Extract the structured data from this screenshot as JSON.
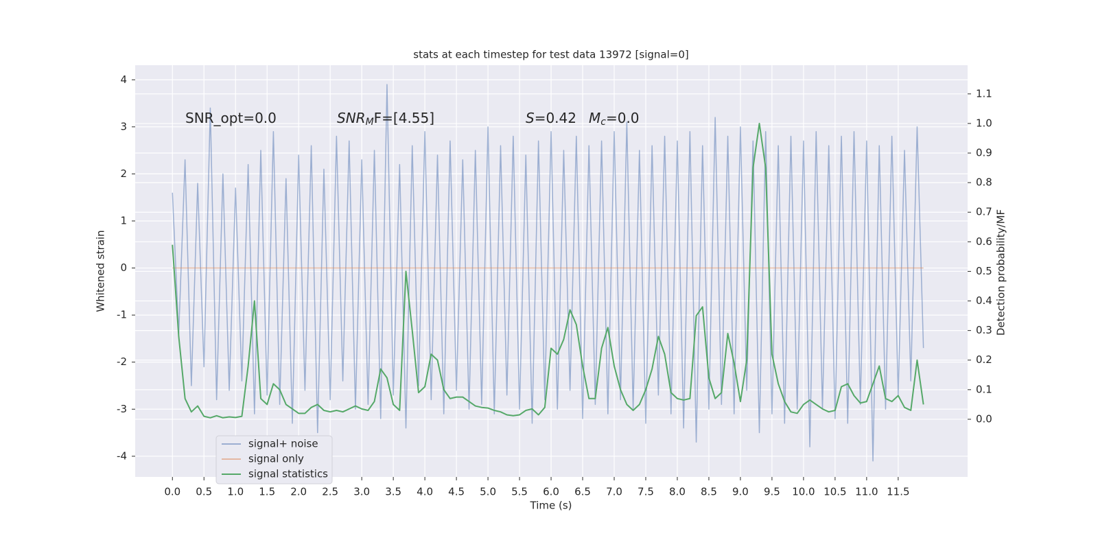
{
  "chart_data": {
    "type": "line",
    "title": "stats at each timestep for test data 13972 [signal=0]",
    "xlabel": "Time (s)",
    "ylabel": "Whitened strain",
    "y2label": "Detection probability/MF",
    "x": [
      0.0,
      0.1,
      0.2,
      0.3,
      0.4,
      0.5,
      0.6,
      0.7,
      0.8,
      0.9,
      1.0,
      1.1,
      1.2,
      1.3,
      1.4,
      1.5,
      1.6,
      1.7,
      1.8,
      1.9,
      2.0,
      2.1,
      2.2,
      2.3,
      2.4,
      2.5,
      2.6,
      2.7,
      2.8,
      2.9,
      3.0,
      3.1,
      3.2,
      3.3,
      3.4,
      3.5,
      3.6,
      3.7,
      3.8,
      3.9,
      4.0,
      4.1,
      4.2,
      4.3,
      4.4,
      4.5,
      4.6,
      4.7,
      4.8,
      4.9,
      5.0,
      5.1,
      5.2,
      5.3,
      5.4,
      5.5,
      5.6,
      5.7,
      5.8,
      5.9,
      6.0,
      6.1,
      6.2,
      6.3,
      6.4,
      6.5,
      6.6,
      6.7,
      6.8,
      6.9,
      7.0,
      7.1,
      7.2,
      7.3,
      7.4,
      7.5,
      7.6,
      7.7,
      7.8,
      7.9,
      8.0,
      8.1,
      8.2,
      8.3,
      8.4,
      8.5,
      8.6,
      8.7,
      8.8,
      8.9,
      9.0,
      9.1,
      9.2,
      9.3,
      9.4,
      9.5,
      9.6,
      9.7,
      9.8,
      9.9,
      10.0,
      10.1,
      10.2,
      10.3,
      10.4,
      10.5,
      10.6,
      10.7,
      10.8,
      10.9,
      11.0,
      11.1,
      11.2,
      11.3,
      11.4,
      11.5,
      11.6,
      11.7,
      11.8,
      11.9
    ],
    "series": [
      {
        "name": "signal+ noise",
        "color": "#4c72b0",
        "opacity": 0.5,
        "axis": "y",
        "values": [
          1.6,
          -1.4,
          2.3,
          -2.5,
          1.8,
          -2.1,
          3.4,
          -2.8,
          2.0,
          -2.6,
          1.7,
          -2.4,
          2.2,
          -3.1,
          2.5,
          -2.7,
          2.9,
          -2.9,
          1.9,
          -3.3,
          2.4,
          -2.6,
          2.6,
          -3.5,
          2.1,
          -2.8,
          2.8,
          -2.4,
          2.7,
          -3.0,
          2.3,
          -2.9,
          2.5,
          -3.2,
          3.9,
          -2.7,
          2.2,
          -3.4,
          2.6,
          -2.5,
          2.9,
          -2.8,
          2.4,
          -3.1,
          2.7,
          -2.6,
          2.3,
          -3.0,
          2.5,
          -2.9,
          3.0,
          -3.1,
          2.6,
          -2.7,
          2.8,
          -3.0,
          2.4,
          -3.3,
          2.7,
          -2.8,
          2.9,
          -3.0,
          2.5,
          -2.6,
          2.8,
          -3.2,
          2.6,
          -2.9,
          2.7,
          -3.1,
          2.9,
          -2.8,
          3.1,
          -3.0,
          2.5,
          -3.3,
          2.6,
          -2.7,
          2.8,
          -3.1,
          2.7,
          -3.4,
          2.9,
          -3.7,
          2.6,
          -3.0,
          3.2,
          -2.9,
          2.8,
          -3.1,
          3.0,
          -2.6,
          2.7,
          -3.5,
          2.9,
          -3.1,
          2.6,
          -3.3,
          2.8,
          -3.0,
          2.7,
          -3.8,
          2.9,
          -3.0,
          2.6,
          -3.2,
          2.8,
          -3.3,
          2.9,
          -2.9,
          2.7,
          -4.1,
          2.6,
          -3.0,
          2.8,
          -2.7,
          2.5,
          -2.4,
          3.0,
          -1.7
        ]
      },
      {
        "name": "signal only",
        "color": "#dd8452",
        "opacity": 0.5,
        "axis": "y",
        "values": [
          0,
          0,
          0,
          0,
          0,
          0,
          0,
          0,
          0,
          0,
          0,
          0,
          0,
          0,
          0,
          0,
          0,
          0,
          0,
          0,
          0,
          0,
          0,
          0,
          0,
          0,
          0,
          0,
          0,
          0,
          0,
          0,
          0,
          0,
          0,
          0,
          0,
          0,
          0,
          0,
          0,
          0,
          0,
          0,
          0,
          0,
          0,
          0,
          0,
          0,
          0,
          0,
          0,
          0,
          0,
          0,
          0,
          0,
          0,
          0,
          0,
          0,
          0,
          0,
          0,
          0,
          0,
          0,
          0,
          0,
          0,
          0,
          0,
          0,
          0,
          0,
          0,
          0,
          0,
          0,
          0,
          0,
          0,
          0,
          0,
          0,
          0,
          0,
          0,
          0,
          0,
          0,
          0,
          0,
          0,
          0,
          0,
          0,
          0,
          0,
          0,
          0,
          0,
          0,
          0,
          0,
          0,
          0,
          0,
          0,
          0,
          0,
          0,
          0,
          0,
          0,
          0,
          0,
          0,
          0
        ]
      },
      {
        "name": "signal statistics",
        "color": "#55a868",
        "opacity": 1,
        "axis": "y2",
        "values": [
          0.59,
          0.28,
          0.07,
          0.025,
          0.045,
          0.01,
          0.005,
          0.012,
          0.005,
          0.008,
          0.006,
          0.01,
          0.18,
          0.4,
          0.07,
          0.05,
          0.12,
          0.1,
          0.05,
          0.035,
          0.02,
          0.02,
          0.04,
          0.05,
          0.03,
          0.025,
          0.03,
          0.025,
          0.035,
          0.045,
          0.035,
          0.03,
          0.06,
          0.17,
          0.14,
          0.05,
          0.03,
          0.5,
          0.3,
          0.09,
          0.11,
          0.22,
          0.2,
          0.1,
          0.07,
          0.075,
          0.075,
          0.06,
          0.045,
          0.04,
          0.038,
          0.03,
          0.025,
          0.015,
          0.012,
          0.015,
          0.03,
          0.035,
          0.015,
          0.04,
          0.24,
          0.22,
          0.27,
          0.37,
          0.32,
          0.18,
          0.07,
          0.07,
          0.24,
          0.31,
          0.18,
          0.1,
          0.05,
          0.03,
          0.05,
          0.1,
          0.17,
          0.28,
          0.22,
          0.09,
          0.07,
          0.065,
          0.07,
          0.35,
          0.38,
          0.14,
          0.07,
          0.09,
          0.29,
          0.19,
          0.06,
          0.2,
          0.85,
          1.0,
          0.85,
          0.22,
          0.12,
          0.06,
          0.025,
          0.02,
          0.05,
          0.065,
          0.05,
          0.035,
          0.025,
          0.03,
          0.11,
          0.12,
          0.08,
          0.055,
          0.06,
          0.12,
          0.18,
          0.07,
          0.06,
          0.08,
          0.04,
          0.03,
          0.2,
          0.05
        ]
      }
    ],
    "xlim": [
      -0.59,
      12.6
    ],
    "ylim": [
      -4.44,
      4.31
    ],
    "y2lim": [
      -0.195,
      1.197
    ],
    "xticks": [
      {
        "value": 0,
        "label": "0.0"
      },
      {
        "value": 0.5,
        "label": "0.5"
      },
      {
        "value": 1,
        "label": "1.0"
      },
      {
        "value": 1.5,
        "label": "1.5"
      },
      {
        "value": 2,
        "label": "2.0"
      },
      {
        "value": 2.5,
        "label": "2.5"
      },
      {
        "value": 3,
        "label": "3.0"
      },
      {
        "value": 3.5,
        "label": "3.5"
      },
      {
        "value": 4,
        "label": "4.0"
      },
      {
        "value": 4.5,
        "label": "4.5"
      },
      {
        "value": 5,
        "label": "5.0"
      },
      {
        "value": 5.5,
        "label": "5.5"
      },
      {
        "value": 6,
        "label": "6.0"
      },
      {
        "value": 6.5,
        "label": "6.5"
      },
      {
        "value": 7,
        "label": "7.0"
      },
      {
        "value": 7.5,
        "label": "7.5"
      },
      {
        "value": 8,
        "label": "8.0"
      },
      {
        "value": 8.5,
        "label": "8.5"
      },
      {
        "value": 9,
        "label": "9.0"
      },
      {
        "value": 9.5,
        "label": "9.5"
      },
      {
        "value": 10,
        "label": "10.0"
      },
      {
        "value": 10.5,
        "label": "10.5"
      },
      {
        "value": 11,
        "label": "11.0"
      },
      {
        "value": 11.5,
        "label": "11.5"
      }
    ],
    "yticks": [
      -4,
      -3,
      -2,
      -1,
      0,
      1,
      2,
      3,
      4
    ],
    "y2ticks": [
      {
        "value": 0,
        "label": "0.0"
      },
      {
        "value": 0.1,
        "label": "0.1"
      },
      {
        "value": 0.2,
        "label": "0.2"
      },
      {
        "value": 0.3,
        "label": "0.3"
      },
      {
        "value": 0.4,
        "label": "0.4"
      },
      {
        "value": 0.5,
        "label": "0.5"
      },
      {
        "value": 0.6,
        "label": "0.6"
      },
      {
        "value": 0.7,
        "label": "0.7"
      },
      {
        "value": 0.8,
        "label": "0.8"
      },
      {
        "value": 0.9,
        "label": "0.9"
      },
      {
        "value": 1.0,
        "label": "1.0"
      },
      {
        "value": 1.1,
        "label": "1.1"
      }
    ],
    "grid": true,
    "legend": "lower left",
    "annotations": [
      [
        {
          "text": "SNR_opt=0.0"
        }
      ],
      [
        {
          "text": "SNR",
          "italic": true
        },
        {
          "text": "M",
          "italic": true,
          "sub": true
        },
        {
          "text": "F=[4.55]"
        }
      ],
      [
        {
          "text": "S",
          "italic": true
        },
        {
          "text": "=0.42"
        }
      ],
      [
        {
          "text": "M",
          "italic": true
        },
        {
          "text": "c",
          "italic": true,
          "sub": true
        },
        {
          "text": "=0.0"
        }
      ]
    ]
  }
}
